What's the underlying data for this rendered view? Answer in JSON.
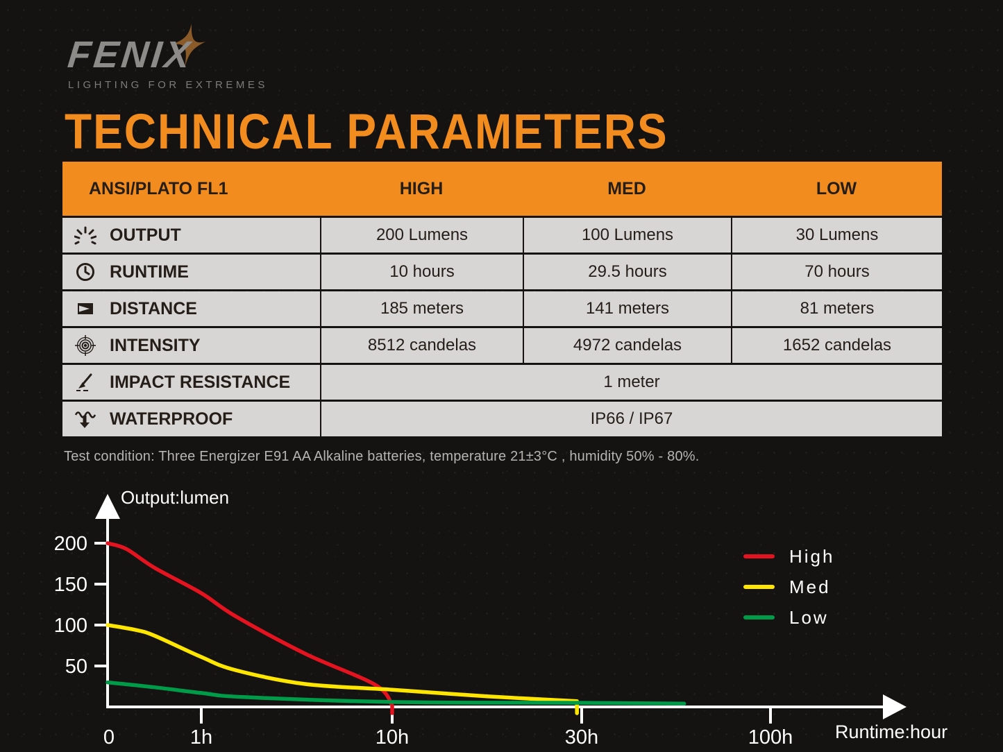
{
  "brand": {
    "name": "FENIX",
    "tagline": "LIGHTING FOR EXTREMES",
    "logo_color": "#8d8b88",
    "star_color": "#8a5a28"
  },
  "page": {
    "title": "TECHNICAL PARAMETERS",
    "title_color": "#F28C1E",
    "background": "#151311"
  },
  "table": {
    "header": {
      "label": "ANSI/PLATO FL1",
      "columns": [
        "HIGH",
        "MED",
        "LOW"
      ],
      "bg": "#F28C1E"
    },
    "row_bg": "#D7D6D4",
    "text_color": "#241d18",
    "rows": [
      {
        "icon": "sunburst-icon",
        "label": "OUTPUT",
        "values": [
          "200 Lumens",
          "100 Lumens",
          "30 Lumens"
        ]
      },
      {
        "icon": "clock-icon",
        "label": "RUNTIME",
        "values": [
          "10 hours",
          "29.5 hours",
          "70 hours"
        ]
      },
      {
        "icon": "beam-distance-icon",
        "label": "DISTANCE",
        "values": [
          "185 meters",
          "141 meters",
          "81 meters"
        ]
      },
      {
        "icon": "intensity-target-icon",
        "label": "INTENSITY",
        "values": [
          "8512 candelas",
          "4972 candelas",
          "1652 candelas"
        ]
      },
      {
        "icon": "impact-icon",
        "label": "IMPACT RESISTANCE",
        "values": [
          "1 meter"
        ],
        "span": true
      },
      {
        "icon": "waterproof-icon",
        "label": "WATERPROOF",
        "values": [
          "IP66 / IP67"
        ],
        "span": true
      }
    ]
  },
  "test_condition": "Test condition: Three Energizer E91 AA Alkaline batteries, temperature 21±3°C , humidity 50% - 80%.",
  "chart_data": {
    "type": "line",
    "ylabel": "Output:lumen",
    "xlabel": "Runtime:hour",
    "ylim": [
      0,
      200
    ],
    "y_ticks": [
      50,
      100,
      150,
      200
    ],
    "x_ticks": [
      {
        "hour": 0,
        "label": "0"
      },
      {
        "hour": 1,
        "label": "1h"
      },
      {
        "hour": 10,
        "label": "10h"
      },
      {
        "hour": 30,
        "label": "30h"
      },
      {
        "hour": 100,
        "label": "100h"
      }
    ],
    "x_scale": "piecewise-log",
    "grid": false,
    "axis_color": "#ffffff",
    "legend_position": "upper right",
    "series": [
      {
        "name": "High",
        "color": "#E3131F",
        "runtime_hours": 10,
        "end_drop": true,
        "points": [
          [
            0,
            200
          ],
          [
            0.2,
            193
          ],
          [
            0.5,
            170
          ],
          [
            1,
            139
          ],
          [
            2.6,
            111
          ],
          [
            5.9,
            65
          ],
          [
            9.2,
            27
          ],
          [
            10,
            2
          ]
        ]
      },
      {
        "name": "Med",
        "color": "#FFE600",
        "runtime_hours": 29.5,
        "end_drop": true,
        "points": [
          [
            0,
            100
          ],
          [
            0.3,
            94
          ],
          [
            0.5,
            87
          ],
          [
            1,
            61
          ],
          [
            2.6,
            45
          ],
          [
            5.9,
            28
          ],
          [
            10,
            21
          ],
          [
            20,
            13
          ],
          [
            29.5,
            7
          ]
        ]
      },
      {
        "name": "Low",
        "color": "#009B48",
        "runtime_hours": 70,
        "end_drop": false,
        "points": [
          [
            0,
            30
          ],
          [
            0.5,
            24
          ],
          [
            1,
            17
          ],
          [
            3,
            12
          ],
          [
            10,
            6
          ],
          [
            30,
            5
          ],
          [
            68,
            4
          ]
        ]
      }
    ]
  }
}
